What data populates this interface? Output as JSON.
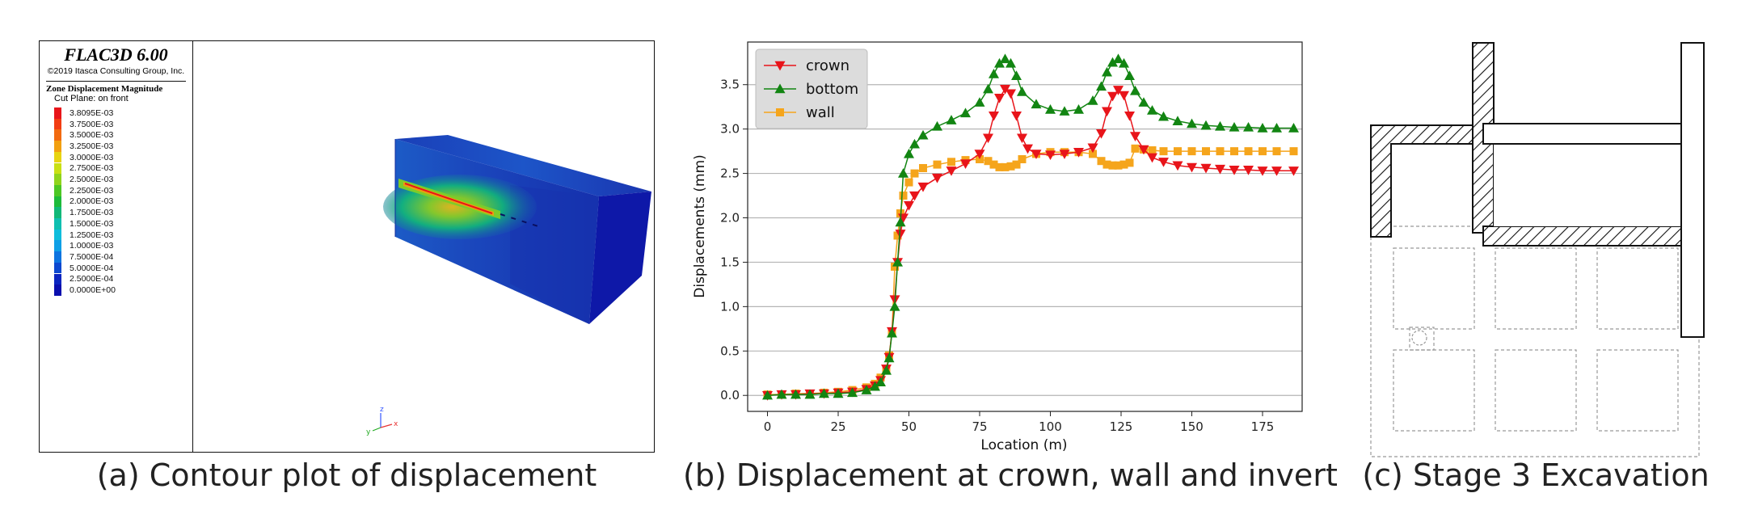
{
  "panel_a": {
    "software_title": "FLAC3D 6.00",
    "copyright": "©2019 Itasca Consulting Group, Inc.",
    "contour_title": "Zone Displacement Magnitude",
    "cut_plane": "Cut Plane: on front",
    "colorbar": [
      {
        "label": "3.8095E-03",
        "color": "#e8151a"
      },
      {
        "label": "3.7500E-03",
        "color": "#f23d13"
      },
      {
        "label": "3.5000E-03",
        "color": "#f26a10"
      },
      {
        "label": "3.2500E-03",
        "color": "#f2a010"
      },
      {
        "label": "3.0000E-03",
        "color": "#e8d411"
      },
      {
        "label": "2.7500E-03",
        "color": "#c9e014"
      },
      {
        "label": "2.5000E-03",
        "color": "#8fd41c"
      },
      {
        "label": "2.2500E-03",
        "color": "#4cc724"
      },
      {
        "label": "2.0000E-03",
        "color": "#1dbb3a"
      },
      {
        "label": "1.7500E-03",
        "color": "#11b878"
      },
      {
        "label": "1.5000E-03",
        "color": "#0fbfb0"
      },
      {
        "label": "1.2500E-03",
        "color": "#0fbddc"
      },
      {
        "label": "1.0000E-03",
        "color": "#0e9fe6"
      },
      {
        "label": "7.5000E-04",
        "color": "#0d74e0"
      },
      {
        "label": "5.0000E-04",
        "color": "#0c48d0"
      },
      {
        "label": "2.5000E-04",
        "color": "#0b25c0"
      },
      {
        "label": "0.0000E+00",
        "color": "#0a0fae"
      }
    ],
    "axis_labels": {
      "x": "x",
      "y": "y",
      "z": "z"
    },
    "caption": "(a) Contour plot of displacement"
  },
  "panel_c": {
    "caption": "(c) Stage 3 Excavation"
  },
  "chart_data": {
    "type": "line",
    "title": "",
    "xlabel": "Location (m)",
    "ylabel": "Displacements (mm)",
    "xlim": [
      -7,
      189
    ],
    "ylim": [
      -0.18,
      3.98
    ],
    "xticks": [
      0,
      25,
      50,
      75,
      100,
      125,
      150,
      175
    ],
    "yticks": [
      0.0,
      0.5,
      1.0,
      1.5,
      2.0,
      2.5,
      3.0,
      3.5
    ],
    "grid": "horizontal",
    "legend_position": "top-left",
    "caption": "(b) Displacement at crown, wall and invert",
    "series": [
      {
        "name": "crown",
        "color": "#e8141a",
        "marker": "triangle-down",
        "points": [
          [
            0,
            0
          ],
          [
            5,
            0.01
          ],
          [
            10,
            0.01
          ],
          [
            15,
            0.02
          ],
          [
            20,
            0.02
          ],
          [
            25,
            0.03
          ],
          [
            30,
            0.04
          ],
          [
            35,
            0.07
          ],
          [
            38,
            0.11
          ],
          [
            40,
            0.17
          ],
          [
            42,
            0.3
          ],
          [
            43,
            0.43
          ],
          [
            44,
            0.72
          ],
          [
            45,
            1.08
          ],
          [
            46,
            1.5
          ],
          [
            47,
            1.82
          ],
          [
            48,
            2.0
          ],
          [
            50,
            2.14
          ],
          [
            52,
            2.25
          ],
          [
            55,
            2.35
          ],
          [
            60,
            2.45
          ],
          [
            65,
            2.53
          ],
          [
            70,
            2.61
          ],
          [
            75,
            2.72
          ],
          [
            78,
            2.9
          ],
          [
            80,
            3.15
          ],
          [
            82,
            3.35
          ],
          [
            84,
            3.45
          ],
          [
            86,
            3.4
          ],
          [
            88,
            3.15
          ],
          [
            90,
            2.9
          ],
          [
            92,
            2.78
          ],
          [
            95,
            2.72
          ],
          [
            100,
            2.71
          ],
          [
            105,
            2.72
          ],
          [
            110,
            2.74
          ],
          [
            115,
            2.79
          ],
          [
            118,
            2.95
          ],
          [
            120,
            3.2
          ],
          [
            122,
            3.37
          ],
          [
            124,
            3.44
          ],
          [
            126,
            3.38
          ],
          [
            128,
            3.15
          ],
          [
            130,
            2.92
          ],
          [
            133,
            2.77
          ],
          [
            136,
            2.68
          ],
          [
            140,
            2.63
          ],
          [
            145,
            2.59
          ],
          [
            150,
            2.57
          ],
          [
            155,
            2.56
          ],
          [
            160,
            2.55
          ],
          [
            165,
            2.54
          ],
          [
            170,
            2.54
          ],
          [
            175,
            2.53
          ],
          [
            180,
            2.53
          ],
          [
            186,
            2.53
          ]
        ]
      },
      {
        "name": "bottom",
        "color": "#128512",
        "marker": "triangle-up",
        "points": [
          [
            0,
            0
          ],
          [
            5,
            0.01
          ],
          [
            10,
            0.01
          ],
          [
            15,
            0.01
          ],
          [
            20,
            0.02
          ],
          [
            25,
            0.02
          ],
          [
            30,
            0.03
          ],
          [
            35,
            0.06
          ],
          [
            38,
            0.1
          ],
          [
            40,
            0.15
          ],
          [
            42,
            0.28
          ],
          [
            43,
            0.42
          ],
          [
            44,
            0.7
          ],
          [
            45,
            1.0
          ],
          [
            46,
            1.5
          ],
          [
            47,
            1.95
          ],
          [
            48,
            2.5
          ],
          [
            50,
            2.72
          ],
          [
            52,
            2.83
          ],
          [
            55,
            2.93
          ],
          [
            60,
            3.03
          ],
          [
            65,
            3.1
          ],
          [
            70,
            3.18
          ],
          [
            75,
            3.3
          ],
          [
            78,
            3.45
          ],
          [
            80,
            3.62
          ],
          [
            82,
            3.74
          ],
          [
            84,
            3.79
          ],
          [
            86,
            3.74
          ],
          [
            88,
            3.6
          ],
          [
            90,
            3.42
          ],
          [
            95,
            3.28
          ],
          [
            100,
            3.22
          ],
          [
            105,
            3.2
          ],
          [
            110,
            3.22
          ],
          [
            115,
            3.32
          ],
          [
            118,
            3.48
          ],
          [
            120,
            3.64
          ],
          [
            122,
            3.75
          ],
          [
            124,
            3.79
          ],
          [
            126,
            3.74
          ],
          [
            128,
            3.6
          ],
          [
            130,
            3.43
          ],
          [
            133,
            3.3
          ],
          [
            136,
            3.21
          ],
          [
            140,
            3.14
          ],
          [
            145,
            3.09
          ],
          [
            150,
            3.06
          ],
          [
            155,
            3.04
          ],
          [
            160,
            3.03
          ],
          [
            165,
            3.02
          ],
          [
            170,
            3.02
          ],
          [
            175,
            3.01
          ],
          [
            180,
            3.01
          ],
          [
            186,
            3.01
          ]
        ]
      },
      {
        "name": "wall",
        "color": "#f5a51c",
        "marker": "square",
        "points": [
          [
            0,
            0.01
          ],
          [
            5,
            0.01
          ],
          [
            10,
            0.02
          ],
          [
            15,
            0.02
          ],
          [
            20,
            0.03
          ],
          [
            25,
            0.04
          ],
          [
            30,
            0.06
          ],
          [
            35,
            0.09
          ],
          [
            38,
            0.13
          ],
          [
            40,
            0.2
          ],
          [
            42,
            0.3
          ],
          [
            43,
            0.45
          ],
          [
            44,
            0.7
          ],
          [
            45,
            1.45
          ],
          [
            46,
            1.8
          ],
          [
            47,
            2.05
          ],
          [
            48,
            2.25
          ],
          [
            50,
            2.4
          ],
          [
            52,
            2.5
          ],
          [
            55,
            2.56
          ],
          [
            60,
            2.6
          ],
          [
            65,
            2.63
          ],
          [
            70,
            2.65
          ],
          [
            75,
            2.66
          ],
          [
            78,
            2.64
          ],
          [
            80,
            2.6
          ],
          [
            82,
            2.57
          ],
          [
            84,
            2.57
          ],
          [
            86,
            2.58
          ],
          [
            88,
            2.6
          ],
          [
            90,
            2.66
          ],
          [
            95,
            2.72
          ],
          [
            100,
            2.74
          ],
          [
            105,
            2.74
          ],
          [
            110,
            2.74
          ],
          [
            115,
            2.72
          ],
          [
            118,
            2.64
          ],
          [
            120,
            2.6
          ],
          [
            122,
            2.59
          ],
          [
            124,
            2.59
          ],
          [
            126,
            2.6
          ],
          [
            128,
            2.62
          ],
          [
            130,
            2.78
          ],
          [
            133,
            2.77
          ],
          [
            136,
            2.76
          ],
          [
            140,
            2.75
          ],
          [
            145,
            2.75
          ],
          [
            150,
            2.75
          ],
          [
            155,
            2.75
          ],
          [
            160,
            2.75
          ],
          [
            165,
            2.75
          ],
          [
            170,
            2.75
          ],
          [
            175,
            2.75
          ],
          [
            180,
            2.75
          ],
          [
            186,
            2.75
          ]
        ]
      }
    ]
  }
}
